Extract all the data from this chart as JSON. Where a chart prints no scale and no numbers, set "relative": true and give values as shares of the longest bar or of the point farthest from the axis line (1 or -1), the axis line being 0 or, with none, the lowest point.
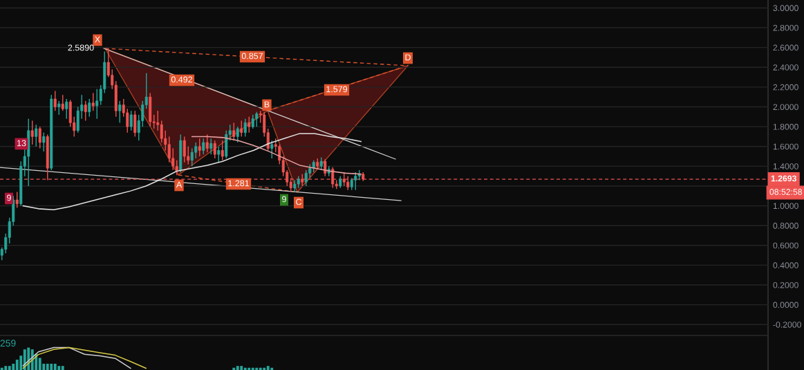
{
  "chart_data": [
    {
      "type": "candlestick",
      "categories": [
        null,
        null,
        null,
        null,
        null,
        null,
        null,
        null,
        null,
        null,
        null,
        null,
        null,
        null,
        null,
        null,
        null,
        null,
        null,
        null,
        null,
        null,
        null,
        null,
        null,
        null,
        null,
        null,
        null,
        null,
        null,
        null,
        null,
        null,
        null,
        null,
        null,
        null,
        null,
        null,
        null,
        null,
        null,
        null,
        null,
        null,
        null,
        null,
        null,
        null,
        null,
        null,
        null,
        null,
        null,
        null,
        null,
        null,
        null,
        null,
        null,
        null,
        null,
        null,
        null,
        null,
        null,
        null,
        null,
        null,
        null,
        null,
        null,
        null,
        null,
        null,
        null,
        null,
        null,
        null,
        null,
        null,
        null,
        null,
        null,
        null,
        null,
        null,
        null,
        null,
        null,
        null,
        null,
        null,
        null,
        null,
        null,
        null,
        null,
        null,
        null,
        null,
        null,
        null,
        null,
        null,
        null,
        null,
        null,
        null,
        null,
        null,
        null,
        null,
        null,
        null,
        null,
        null,
        null,
        null,
        null,
        null,
        null,
        null,
        null,
        null,
        null,
        null,
        null,
        null,
        null,
        null,
        null,
        null,
        null,
        null,
        null,
        null,
        null,
        null,
        null,
        null,
        null,
        null,
        null,
        null,
        null,
        null,
        null,
        null,
        null,
        null,
        null,
        null,
        null,
        null,
        null,
        null,
        null,
        null,
        null,
        null,
        null,
        null,
        null,
        null,
        null,
        null,
        null,
        null,
        null,
        null,
        null,
        null,
        null,
        null,
        null,
        null,
        null,
        null,
        null,
        null,
        null,
        null,
        null,
        null,
        null,
        null,
        null,
        null,
        null,
        null,
        null,
        null,
        null,
        null,
        null,
        null,
        null,
        null,
        null,
        null
      ],
      "ohlc": [
        [
          0.5,
          0.58,
          0.45,
          0.56
        ],
        [
          0.56,
          0.72,
          0.52,
          0.68
        ],
        [
          0.68,
          0.88,
          0.62,
          0.84
        ],
        [
          0.84,
          1.1,
          0.8,
          1.06
        ],
        [
          1.06,
          1.14,
          0.98,
          1.02
        ],
        [
          1.02,
          1.45,
          1.0,
          1.4
        ],
        [
          1.4,
          1.58,
          1.3,
          1.5
        ],
        [
          1.5,
          1.88,
          1.2,
          1.76
        ],
        [
          1.76,
          1.86,
          1.62,
          1.7
        ],
        [
          1.7,
          1.82,
          1.6,
          1.78
        ],
        [
          1.78,
          1.8,
          1.58,
          1.64
        ],
        [
          1.64,
          1.74,
          1.55,
          1.7
        ],
        [
          1.7,
          1.72,
          1.26,
          1.38
        ],
        [
          1.38,
          2.12,
          1.36,
          2.08
        ],
        [
          2.08,
          2.16,
          1.96,
          2.0
        ],
        [
          2.0,
          2.06,
          1.92,
          2.03
        ],
        [
          2.03,
          2.12,
          1.96,
          1.98
        ],
        [
          1.98,
          2.08,
          1.88,
          2.05
        ],
        [
          2.05,
          2.07,
          1.8,
          1.84
        ],
        [
          1.84,
          1.9,
          1.7,
          1.76
        ],
        [
          1.76,
          2.0,
          1.74,
          1.96
        ],
        [
          1.96,
          2.12,
          1.88,
          2.02
        ],
        [
          2.02,
          2.06,
          1.86,
          1.95
        ],
        [
          1.95,
          2.08,
          1.9,
          2.04
        ],
        [
          2.04,
          2.14,
          1.96,
          2.01
        ],
        [
          2.01,
          2.18,
          1.88,
          2.06
        ],
        [
          2.06,
          2.22,
          2.02,
          2.18
        ],
        [
          2.18,
          2.56,
          2.14,
          2.45
        ],
        [
          2.45,
          2.589,
          2.3,
          2.32
        ],
        [
          2.32,
          2.38,
          2.18,
          2.22
        ],
        [
          2.22,
          2.26,
          1.9,
          1.96
        ],
        [
          1.96,
          2.06,
          1.84,
          2.02
        ],
        [
          2.02,
          2.08,
          1.9,
          1.94
        ],
        [
          1.94,
          1.98,
          1.74,
          1.8
        ],
        [
          1.8,
          1.96,
          1.76,
          1.92
        ],
        [
          1.92,
          1.96,
          1.7,
          1.74
        ],
        [
          1.74,
          1.92,
          1.66,
          1.86
        ],
        [
          1.86,
          2.06,
          1.8,
          2.02
        ],
        [
          2.02,
          2.34,
          1.98,
          2.1
        ],
        [
          2.1,
          2.14,
          1.8,
          1.85
        ],
        [
          1.85,
          1.92,
          1.78,
          1.84
        ],
        [
          1.84,
          1.96,
          1.76,
          1.82
        ],
        [
          1.82,
          1.86,
          1.64,
          1.68
        ],
        [
          1.68,
          1.76,
          1.56,
          1.62
        ],
        [
          1.62,
          1.7,
          1.44,
          1.48
        ],
        [
          1.48,
          1.58,
          1.36,
          1.4
        ],
        [
          1.4,
          1.46,
          1.31,
          1.36
        ],
        [
          1.36,
          1.72,
          1.34,
          1.66
        ],
        [
          1.66,
          1.7,
          1.44,
          1.5
        ],
        [
          1.5,
          1.6,
          1.42,
          1.46
        ],
        [
          1.46,
          1.58,
          1.4,
          1.54
        ],
        [
          1.54,
          1.64,
          1.48,
          1.6
        ],
        [
          1.6,
          1.68,
          1.5,
          1.56
        ],
        [
          1.56,
          1.68,
          1.52,
          1.64
        ],
        [
          1.64,
          1.72,
          1.54,
          1.58
        ],
        [
          1.58,
          1.68,
          1.52,
          1.63
        ],
        [
          1.63,
          1.66,
          1.48,
          1.52
        ],
        [
          1.52,
          1.6,
          1.44,
          1.56
        ],
        [
          1.56,
          1.66,
          1.46,
          1.5
        ],
        [
          1.5,
          1.76,
          1.48,
          1.72
        ],
        [
          1.72,
          1.82,
          1.66,
          1.76
        ],
        [
          1.76,
          1.84,
          1.66,
          1.7
        ],
        [
          1.7,
          1.8,
          1.64,
          1.78
        ],
        [
          1.78,
          1.86,
          1.7,
          1.74
        ],
        [
          1.74,
          1.88,
          1.7,
          1.84
        ],
        [
          1.84,
          1.9,
          1.74,
          1.8
        ],
        [
          1.8,
          1.92,
          1.78,
          1.88
        ],
        [
          1.88,
          1.95,
          1.8,
          1.93
        ],
        [
          1.93,
          1.96,
          1.84,
          1.92
        ],
        [
          1.92,
          1.95,
          1.7,
          1.74
        ],
        [
          1.74,
          1.78,
          1.56,
          1.58
        ],
        [
          1.58,
          1.66,
          1.48,
          1.62
        ],
        [
          1.62,
          1.68,
          1.54,
          1.6
        ],
        [
          1.6,
          1.62,
          1.42,
          1.46
        ],
        [
          1.46,
          1.5,
          1.3,
          1.34
        ],
        [
          1.34,
          1.36,
          1.2,
          1.24
        ],
        [
          1.24,
          1.28,
          1.14,
          1.18
        ],
        [
          1.18,
          1.26,
          1.14,
          1.22
        ],
        [
          1.22,
          1.3,
          1.18,
          1.27
        ],
        [
          1.27,
          1.32,
          1.2,
          1.24
        ],
        [
          1.24,
          1.36,
          1.2,
          1.33
        ],
        [
          1.33,
          1.42,
          1.28,
          1.38
        ],
        [
          1.38,
          1.46,
          1.34,
          1.44
        ],
        [
          1.44,
          1.48,
          1.38,
          1.4
        ],
        [
          1.4,
          1.49,
          1.36,
          1.45
        ],
        [
          1.45,
          1.47,
          1.3,
          1.33
        ],
        [
          1.33,
          1.4,
          1.3,
          1.37
        ],
        [
          1.37,
          1.39,
          1.18,
          1.22
        ],
        [
          1.22,
          1.26,
          1.17,
          1.2
        ],
        [
          1.2,
          1.3,
          1.18,
          1.27
        ],
        [
          1.27,
          1.33,
          1.2,
          1.24
        ],
        [
          1.24,
          1.3,
          1.16,
          1.19
        ],
        [
          1.19,
          1.28,
          1.16,
          1.26
        ],
        [
          1.26,
          1.34,
          1.16,
          1.3
        ],
        [
          1.3,
          1.36,
          1.26,
          1.32
        ],
        [
          1.32,
          1.34,
          1.25,
          1.2693
        ],
        null,
        null,
        null,
        null,
        null,
        null,
        null,
        null,
        null,
        null,
        null,
        null,
        null,
        null,
        null,
        null,
        null,
        null,
        null,
        null,
        null,
        null,
        null,
        null,
        null,
        null,
        null,
        null,
        null,
        null,
        null,
        null,
        null,
        null,
        null,
        null,
        null,
        null,
        null,
        null,
        null,
        null,
        null,
        null,
        null,
        null,
        null,
        null,
        null,
        null,
        null,
        null,
        null,
        null,
        null,
        null,
        null,
        null,
        null,
        null,
        null,
        null,
        null,
        null,
        null,
        null,
        null,
        null,
        null,
        null,
        null,
        null,
        null,
        null,
        null,
        null,
        null,
        null,
        null,
        null,
        null,
        null,
        null,
        null,
        null,
        null,
        null,
        null,
        null,
        null,
        null,
        null,
        null,
        null,
        null,
        null,
        null,
        null,
        null,
        null,
        null,
        null,
        null,
        null,
        null,
        null
      ],
      "colors": [
        "#26a69a",
        "#26a69a",
        "#26a69a",
        "#26a69a",
        "#ef5350",
        "#26a69a",
        "#26a69a",
        "#26a69a",
        "#ef5350",
        "#26a69a",
        "#ef5350",
        "#26a69a",
        "#ef5350",
        "#26a69a",
        "#ef5350",
        "#26a69a",
        "#ef5350",
        "#26a69a",
        "#ef5350",
        "#ef5350",
        "#26a69a",
        "#26a69a",
        "#ef5350",
        "#26a69a",
        "#ef5350",
        "#26a69a",
        "#26a69a",
        "#26a69a",
        "#ef5350",
        "#ef5350",
        "#ef5350",
        "#26a69a",
        "#ef5350",
        "#ef5350",
        "#26a69a",
        "#ef5350",
        "#26a69a",
        "#26a69a",
        "#26a69a",
        "#ef5350",
        "#ef5350",
        "#ef5350",
        "#ef5350",
        "#ef5350",
        "#ef5350",
        "#ef5350",
        "#ef5350",
        "#26a69a",
        "#ef5350",
        "#ef5350",
        "#26a69a",
        "#26a69a",
        "#ef5350",
        "#26a69a",
        "#ef5350",
        "#26a69a",
        "#ef5350",
        "#26a69a",
        "#ef5350",
        "#26a69a",
        "#26a69a",
        "#ef5350",
        "#26a69a",
        "#ef5350",
        "#26a69a",
        "#ef5350",
        "#26a69a",
        "#26a69a",
        "#ef5350",
        "#ef5350",
        "#ef5350",
        "#26a69a",
        "#ef5350",
        "#ef5350",
        "#ef5350",
        "#ef5350",
        "#ef5350",
        "#26a69a",
        "#26a69a",
        "#ef5350",
        "#26a69a",
        "#26a69a",
        "#26a69a",
        "#ef5350",
        "#26a69a",
        "#ef5350",
        "#26a69a",
        "#ef5350",
        "#ef5350",
        "#26a69a",
        "#ef5350",
        "#ef5350",
        "#26a69a",
        "#26a69a",
        "#26a69a",
        "#ef5350",
        null,
        null,
        null,
        null,
        null,
        null,
        null,
        null,
        null,
        null,
        null,
        null,
        null,
        null,
        null,
        null,
        null,
        null,
        null,
        null,
        null,
        null,
        null,
        null,
        null,
        null,
        null,
        null,
        null,
        null,
        null,
        null,
        null,
        null,
        null,
        null,
        null,
        null,
        null,
        null,
        null,
        null,
        null,
        null,
        null,
        null,
        null,
        null,
        null,
        null,
        null,
        null,
        null,
        null,
        null,
        null,
        null,
        null,
        null,
        null,
        null,
        null,
        null,
        null,
        null,
        null,
        null,
        null,
        null,
        null,
        null,
        null,
        null,
        null,
        null,
        null,
        null,
        null,
        null,
        null,
        null,
        null,
        null,
        null,
        null,
        null,
        null,
        null,
        null,
        null,
        null,
        null,
        null,
        null,
        null,
        null,
        null,
        null,
        null,
        null,
        null,
        null,
        null,
        null,
        null,
        null
      ],
      "annotations": [
        "X",
        "A",
        "B",
        "C",
        "D",
        "2.5890",
        "0.857",
        "0.492",
        "1.579",
        "1.281",
        "13",
        "9",
        "9",
        "08:52:58"
      ],
      "ref_lines": [
        {
          "axis": "y",
          "value": 1.2693,
          "label": "1.2693",
          "color": "#ef5350",
          "line_style": "dashed"
        }
      ],
      "ylim": [
        -0.31,
        3.08
      ],
      "yticks": [
        {
          "value": -0.2,
          "label": "-0.2000"
        },
        {
          "value": 0,
          "label": "0.0000"
        },
        {
          "value": 0.2,
          "label": "0.2000"
        },
        {
          "value": 0.4,
          "label": "0.4000"
        },
        {
          "value": 0.6,
          "label": "0.6000"
        },
        {
          "value": 0.8,
          "label": "0.8000"
        },
        {
          "value": 1.0,
          "label": "1.0000"
        },
        {
          "value": 1.2,
          "label": null
        },
        {
          "value": 1.4,
          "label": "1.4000"
        },
        {
          "value": 1.6,
          "label": "1.6000"
        },
        {
          "value": 1.8,
          "label": "1.8000"
        },
        {
          "value": 2.0,
          "label": "2.0000"
        },
        {
          "value": 2.2,
          "label": "2.2000"
        },
        {
          "value": 2.4,
          "label": "2.4000"
        },
        {
          "value": 2.6,
          "label": "2.6000"
        },
        {
          "value": 2.8,
          "label": "2.8000"
        },
        {
          "value": 3.0,
          "label": "3.0000"
        }
      ],
      "tick_labels": "y",
      "grid": "y"
    },
    {
      "type": "line",
      "categories": [
        null,
        null,
        null,
        null,
        null,
        null,
        null,
        null,
        null,
        null,
        null,
        null,
        null,
        null,
        null,
        null,
        null,
        null,
        null,
        null,
        null,
        null,
        null,
        null,
        null,
        null,
        null,
        null,
        null,
        null,
        null,
        null,
        null,
        null,
        null,
        null,
        null,
        null,
        null,
        null,
        null,
        null,
        null,
        null,
        null,
        null,
        null,
        null,
        null,
        null
      ],
      "series": [
        {
          "color": "#e0e0e0",
          "values": [
            null,
            1.0,
            0.97,
            0.96,
            0.99,
            1.03,
            1.07,
            1.11,
            1.15,
            1.2,
            1.27,
            1.35,
            1.38,
            1.41,
            1.45,
            1.51,
            1.56,
            1.63,
            1.68,
            1.73,
            1.73,
            1.7,
            1.68,
            1.65,
            null,
            null,
            null,
            null,
            null,
            null,
            null,
            null,
            null,
            null,
            null,
            null,
            null,
            null,
            null,
            null,
            null,
            null,
            null,
            null,
            null,
            null,
            null,
            null,
            null,
            null
          ]
        }
      ],
      "ylim": [
        -0.31,
        3.08
      ],
      "tick_labels": false
    },
    {
      "type": "line",
      "categories": [
        null,
        null,
        null,
        null,
        null,
        null,
        null,
        null,
        null,
        null,
        null,
        null,
        null,
        null,
        null,
        null,
        null,
        null,
        null,
        null,
        null,
        null,
        null,
        null,
        null,
        null,
        null,
        null,
        null,
        null,
        null,
        null,
        null,
        null,
        null,
        null,
        null,
        null,
        null,
        null,
        null,
        null,
        null,
        null,
        null,
        null,
        null,
        null,
        null,
        null
      ],
      "series": [
        {
          "color": "#e8a0a0",
          "values": [
            null,
            null,
            null,
            null,
            null,
            null,
            null,
            null,
            null,
            null,
            null,
            null,
            1.7,
            1.7,
            1.69,
            1.66,
            1.61,
            1.55,
            1.48,
            1.41,
            1.38,
            1.35,
            1.33,
            1.32,
            null,
            null,
            null,
            null,
            null,
            null,
            null,
            null,
            null,
            null,
            null,
            null,
            null,
            null,
            null,
            null,
            null,
            null,
            null,
            null,
            null,
            null,
            null,
            null,
            null,
            null
          ]
        }
      ],
      "ylim": [
        -0.31,
        3.08
      ],
      "tick_labels": false
    },
    {
      "type": "bar",
      "relative": true,
      "categories": [
        null,
        null,
        null,
        null,
        null,
        null,
        null,
        null,
        null,
        null,
        null,
        null,
        null,
        null,
        null,
        null,
        null,
        null,
        null,
        null,
        null,
        null,
        null,
        null,
        null,
        null,
        null,
        null,
        null,
        null,
        null,
        null,
        null,
        null,
        null,
        null,
        null,
        null,
        null,
        null,
        null,
        null,
        null,
        null,
        null,
        null,
        null,
        null,
        null,
        null,
        null,
        null,
        null,
        null,
        null,
        null,
        null,
        null,
        null,
        null,
        null,
        null,
        null,
        null,
        null,
        null,
        null,
        null,
        null,
        null,
        null,
        null,
        null,
        null,
        null,
        null,
        null,
        null,
        null,
        null,
        null,
        null,
        null,
        null,
        null,
        null,
        null,
        null,
        null,
        null,
        null,
        null,
        null,
        null,
        null,
        null,
        null,
        null,
        null,
        null,
        null,
        null,
        null,
        null,
        null,
        null,
        null,
        null,
        null,
        null,
        null,
        null,
        null,
        null,
        null,
        null,
        null,
        null,
        null,
        null,
        null,
        null,
        null,
        null,
        null,
        null,
        null,
        null,
        null,
        null,
        null,
        null,
        null,
        null,
        null,
        null,
        null,
        null,
        null,
        null,
        null,
        null,
        null,
        null,
        null,
        null,
        null,
        null,
        null,
        null,
        null,
        null,
        null,
        null,
        null,
        null,
        null,
        null,
        null,
        null,
        null,
        null,
        null,
        null,
        null,
        null,
        null,
        null,
        null,
        null,
        null,
        null,
        null,
        null,
        null,
        null,
        null,
        null,
        null,
        null,
        null,
        null,
        null,
        null,
        null,
        null,
        null,
        null,
        null,
        null,
        null,
        null,
        null,
        null,
        null,
        null,
        null,
        null,
        null,
        null,
        null,
        null
      ],
      "series": [
        {
          "color": "#26a69a",
          "values": [
            0.1,
            0.18,
            0.18,
            0.28,
            0.46,
            0.64,
            0.92,
            1,
            0.92,
            0.72,
            0.54,
            0.28,
            0.28,
            0.28,
            0.28,
            0.18,
            0.18,
            0,
            0,
            0,
            0,
            0,
            0,
            0,
            0,
            0,
            0,
            0,
            0,
            0,
            0,
            0,
            0,
            0,
            0,
            0,
            0,
            0,
            0,
            0,
            0,
            0,
            0,
            0,
            0,
            0,
            0,
            0,
            0,
            0,
            0,
            0,
            0,
            0,
            0,
            0,
            0,
            0,
            0,
            0,
            0,
            0.1,
            0.18,
            0.18,
            0.1,
            0.1,
            0.1,
            0.1,
            0.1,
            0.1,
            0.18,
            0.1,
            0,
            0,
            0,
            0,
            0,
            0,
            0,
            0,
            0,
            0,
            0,
            0,
            0,
            0,
            0,
            0,
            0,
            0,
            0,
            0,
            0,
            0,
            0,
            0,
            0,
            0,
            0,
            0,
            0,
            0,
            0,
            0,
            0,
            0,
            0,
            0,
            0,
            0,
            0,
            0,
            0,
            0,
            0,
            0,
            0,
            0,
            0,
            0,
            0,
            0,
            0,
            0,
            0,
            0,
            0,
            0,
            0,
            0,
            0,
            0,
            0,
            0,
            0,
            0,
            0,
            0,
            0,
            0,
            0,
            0,
            0,
            0,
            0,
            0,
            0,
            0,
            0,
            0,
            0,
            0,
            0,
            0,
            0,
            0,
            0,
            0,
            0,
            0,
            0,
            0,
            0,
            0,
            0,
            0,
            0,
            0,
            0,
            0,
            0,
            0,
            0,
            0,
            0,
            0,
            0,
            0,
            0,
            0,
            0,
            0,
            0,
            0,
            0,
            0,
            0,
            0,
            0,
            0,
            0,
            0,
            0,
            0,
            0,
            0,
            0,
            0,
            0,
            0,
            0,
            0
          ]
        }
      ],
      "annotations": [
        "259"
      ],
      "tick_labels": false
    },
    {
      "type": "line",
      "relative": true,
      "categories": [
        null,
        null,
        null,
        null,
        null,
        null,
        null,
        null,
        null,
        null,
        null,
        null,
        null,
        null,
        null,
        null,
        null,
        null,
        null,
        null,
        null,
        null,
        null,
        null,
        null,
        null,
        null,
        null,
        null,
        null,
        null,
        null,
        null,
        null,
        null,
        null,
        null,
        null,
        null,
        null,
        null,
        null,
        null,
        null,
        null,
        null,
        null,
        null,
        null,
        null
      ],
      "series": [
        {
          "color": "#cfcfcf",
          "values": [
            null,
            0.19,
            0.81,
            1,
            1,
            0.7,
            0.63,
            0.52,
            0.08,
            null,
            null,
            null,
            null,
            null,
            null,
            null,
            null,
            null,
            null,
            null,
            null,
            null,
            null,
            null,
            null,
            null,
            null,
            null,
            null,
            null,
            null,
            null,
            null,
            null,
            null,
            null,
            null,
            null,
            null,
            null,
            null,
            null,
            null,
            null,
            null,
            null,
            null,
            null,
            null,
            null
          ]
        }
      ],
      "tick_labels": false
    },
    {
      "type": "line",
      "relative": true,
      "categories": [
        null,
        null,
        null,
        null,
        null,
        null,
        null,
        null,
        null,
        null,
        null,
        null,
        null,
        null,
        null,
        null,
        null,
        null,
        null,
        null,
        null,
        null,
        null,
        null,
        null,
        null,
        null,
        null,
        null,
        null,
        null,
        null,
        null,
        null,
        null,
        null,
        null,
        null,
        null,
        null,
        null,
        null,
        null,
        null,
        null,
        null,
        null,
        null,
        null,
        null
      ],
      "series": [
        {
          "color": "#d4c744",
          "values": [
            null,
            0.08,
            0.69,
            0.92,
            1,
            0.89,
            0.77,
            0.66,
            0.38,
            0.08,
            null,
            null,
            null,
            null,
            null,
            null,
            null,
            null,
            null,
            null,
            null,
            null,
            null,
            null,
            null,
            null,
            null,
            null,
            null,
            null,
            null,
            null,
            null,
            null,
            null,
            null,
            null,
            null,
            null,
            null,
            null,
            null,
            null,
            null,
            null,
            null,
            null,
            null,
            null,
            null
          ]
        }
      ],
      "tick_labels": false
    }
  ]
}
